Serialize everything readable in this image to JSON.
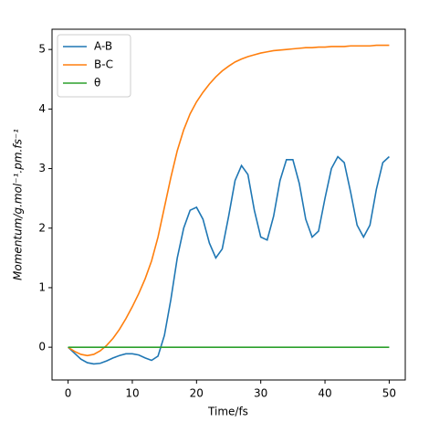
{
  "chart_data": {
    "type": "line",
    "xlabel": "Time/fs",
    "ylabel": "Momentum/g.mol⁻¹.pm.fs⁻¹",
    "x": [
      0,
      1,
      2,
      3,
      4,
      5,
      6,
      7,
      8,
      9,
      10,
      11,
      12,
      13,
      14,
      15,
      16,
      17,
      18,
      19,
      20,
      21,
      22,
      23,
      24,
      25,
      26,
      27,
      28,
      29,
      30,
      31,
      32,
      33,
      34,
      35,
      36,
      37,
      38,
      39,
      40,
      41,
      42,
      43,
      44,
      45,
      46,
      47,
      48,
      49,
      50
    ],
    "series": [
      {
        "name": "A-B",
        "color": "#1f77b4",
        "values": [
          0,
          -0.1,
          -0.2,
          -0.26,
          -0.28,
          -0.27,
          -0.23,
          -0.18,
          -0.14,
          -0.11,
          -0.11,
          -0.13,
          -0.18,
          -0.22,
          -0.15,
          0.2,
          0.8,
          1.5,
          2.0,
          2.3,
          2.35,
          2.15,
          1.75,
          1.5,
          1.65,
          2.2,
          2.8,
          3.05,
          2.9,
          2.3,
          1.85,
          1.8,
          2.2,
          2.8,
          3.15,
          3.15,
          2.75,
          2.15,
          1.85,
          1.95,
          2.5,
          3.0,
          3.2,
          3.1,
          2.6,
          2.05,
          1.85,
          2.05,
          2.65,
          3.1,
          3.2
        ]
      },
      {
        "name": "B-C",
        "color": "#ff7f0e",
        "values": [
          0,
          -0.07,
          -0.12,
          -0.14,
          -0.12,
          -0.06,
          0.03,
          0.15,
          0.3,
          0.48,
          0.68,
          0.9,
          1.15,
          1.45,
          1.85,
          2.35,
          2.85,
          3.3,
          3.65,
          3.92,
          4.12,
          4.28,
          4.42,
          4.54,
          4.64,
          4.72,
          4.79,
          4.84,
          4.88,
          4.91,
          4.94,
          4.96,
          4.98,
          4.99,
          5.0,
          5.01,
          5.02,
          5.03,
          5.03,
          5.04,
          5.04,
          5.05,
          5.05,
          5.05,
          5.06,
          5.06,
          5.06,
          5.06,
          5.07,
          5.07,
          5.07
        ]
      },
      {
        "name": "θ",
        "color": "#2ca02c",
        "values": [
          0,
          0,
          0,
          0,
          0,
          0,
          0,
          0,
          0,
          0,
          0,
          0,
          0,
          0,
          0,
          0,
          0,
          0,
          0,
          0,
          0,
          0,
          0,
          0,
          0,
          0,
          0,
          0,
          0,
          0,
          0,
          0,
          0,
          0,
          0,
          0,
          0,
          0,
          0,
          0,
          0,
          0,
          0,
          0,
          0,
          0,
          0,
          0,
          0,
          0,
          0
        ]
      }
    ],
    "xlim": [
      -2.5,
      52.5
    ],
    "ylim": [
      -0.55,
      5.34
    ],
    "xticks": [
      0,
      10,
      20,
      30,
      40,
      50
    ],
    "yticks": [
      0,
      1,
      2,
      3,
      4,
      5
    ],
    "legend": "upper left"
  }
}
